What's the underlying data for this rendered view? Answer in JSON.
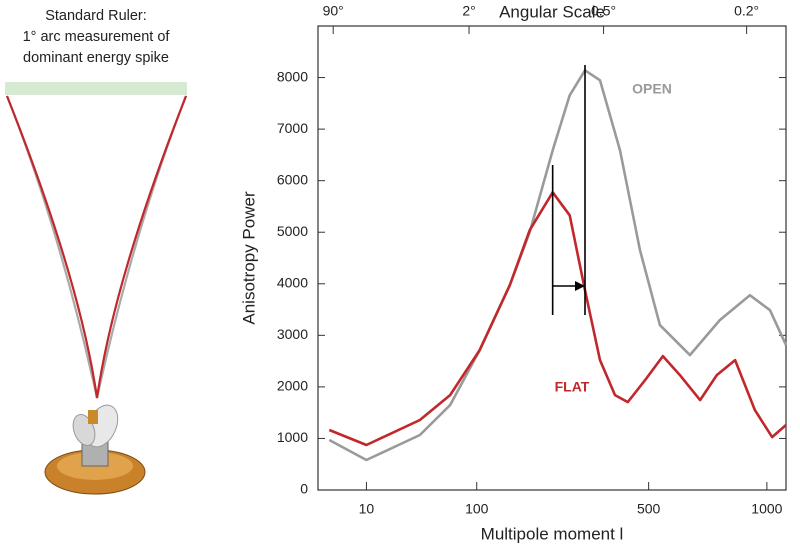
{
  "ruler": {
    "lines": [
      "Standard Ruler:",
      "1° arc measurement of",
      "dominant energy spike"
    ]
  },
  "chart_data": {
    "type": "line",
    "xlabel": "Multipole moment l",
    "ylabel": "Anisotropy Power",
    "x2label": "Angular Scale",
    "xscale": "power",
    "xpower": 0.42,
    "xlim": [
      0.5,
      1100
    ],
    "xticks": [
      10,
      100,
      500,
      1000
    ],
    "x2ticks": [
      {
        "value": 2,
        "label": "90°"
      },
      {
        "value": 90,
        "label": "2°"
      },
      {
        "value": 360,
        "label": "0.5°"
      },
      {
        "value": 900,
        "label": "0.2°"
      }
    ],
    "ylim": [
      0,
      9000
    ],
    "yticks": [
      0,
      1000,
      2000,
      3000,
      4000,
      5000,
      6000,
      7000,
      8000
    ],
    "grid": false,
    "peak_lines": [
      233,
      310
    ],
    "series": [
      {
        "name": "FLAT",
        "color": "#c0282b",
        "x": [
          1.5,
          10,
          40,
          68,
          104,
          150,
          186,
          233,
          272,
          310,
          350,
          393,
          432,
          488,
          550,
          613,
          693,
          764,
          846,
          940,
          1027,
          1100
        ],
        "values": [
          1163,
          872,
          1357,
          1841,
          2713,
          3973,
          5039,
          5775,
          5329,
          3876,
          2519,
          1841,
          1705,
          2132,
          2597,
          2229,
          1744,
          2229,
          2519,
          1550,
          1027,
          1260
        ]
      },
      {
        "name": "OPEN",
        "color": "#9a9a9a",
        "x": [
          1.5,
          10,
          40,
          68,
          104,
          150,
          186,
          233,
          272,
          310,
          350,
          408,
          471,
          539,
          652,
          777,
          916,
          1016,
          1100
        ],
        "values": [
          969,
          581,
          1066,
          1647,
          2713,
          3973,
          5000,
          6589,
          7655,
          8140,
          7946,
          6589,
          4651,
          3198,
          2616,
          3295,
          3779,
          3488,
          2810
        ]
      }
    ]
  }
}
